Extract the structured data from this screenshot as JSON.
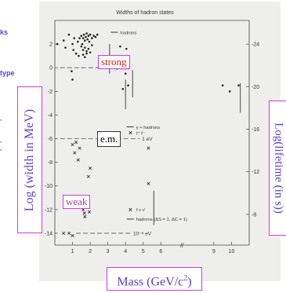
{
  "sidebar_fragments": [
    "ks",
    "type"
  ],
  "colors": {
    "label_border": "#d63ad8",
    "axis_label_text": "#5b3fd0",
    "strong_text": "#e81c1c"
  },
  "chart_data": {
    "type": "scatter",
    "title": "Widths of hadron states",
    "xlabel": "Mass (GeV/c",
    "xlabel_superscript": "2",
    "xlabel_close": ")",
    "ylabel_left": "Log (width in MeV)",
    "ylabel_right": "Log(lifetime (in s))",
    "xlim": [
      0,
      11
    ],
    "ylim": [
      -15,
      4
    ],
    "x_ticks": [
      1,
      2,
      3,
      4,
      5,
      6,
      9,
      10
    ],
    "y_ticks_left": [
      2,
      0,
      -2,
      -4,
      -6,
      -8,
      -10,
      -12,
      -14
    ],
    "y_ticks_right": [
      -24,
      -20,
      -16,
      -12,
      -8
    ],
    "regions": {
      "strong": "strong",
      "em": "e.m.",
      "weak": "weak"
    },
    "reference_lines": [
      {
        "label": "1 MeV",
        "y": 0
      },
      {
        "label": "1 eV",
        "y": -6
      },
      {
        "label": "10⁻⁸ eV",
        "y": -14
      }
    ],
    "legend": {
      "hadrons": "hadrons",
      "em1": "γ + hadrons",
      "em2": "ℓ⁺ ℓ⁻",
      "weak1": "ℓ ν ν̄",
      "weak2": "hadrons (ΔS = 1, ΔC = 1)"
    },
    "series": [
      {
        "x": [
          0.14,
          0.5,
          0.6,
          0.8,
          1.0,
          1.05,
          1.1,
          1.2,
          1.3,
          1.35,
          1.4,
          1.5,
          1.55,
          1.6,
          1.65,
          1.7,
          1.75,
          1.8,
          1.85,
          1.9,
          1.95,
          2.0,
          2.1,
          2.2,
          2.3,
          2.4,
          1.5,
          1.6,
          1.7,
          1.8,
          1.9,
          2.0,
          2.1,
          1.6,
          1.7,
          1.8,
          0.95,
          1.0,
          3.7,
          3.85,
          4.0,
          4.05,
          4.15,
          9.5,
          9.9,
          10.4
        ],
        "y": [
          2.0,
          2.3,
          1.7,
          2.8,
          2.0,
          1.5,
          2.5,
          1.2,
          2.2,
          1.0,
          2.5,
          2.7,
          2.0,
          2.5,
          2.8,
          2.3,
          2.6,
          2.9,
          2.4,
          2.7,
          2.2,
          2.8,
          2.5,
          2.7,
          2.6,
          2.8,
          1.8,
          1.5,
          1.7,
          1.4,
          1.6,
          1.3,
          1.9,
          1.1,
          0.9,
          1.2,
          -0.3,
          -1.0,
          1.8,
          -1.8,
          -0.5,
          1.6,
          -1.5,
          -1.5,
          -2.0,
          -1.5
        ]
      },
      {
        "x": [
          1.0,
          1.12,
          1.2,
          1.32,
          1.4,
          1.6,
          1.67,
          1.7,
          1.9,
          1.95,
          2.0,
          5.3,
          5.3,
          0.5,
          1.0,
          0.8
        ],
        "y": [
          -6.5,
          -7.2,
          -6.3,
          -7.8,
          -6.8,
          -12.0,
          -12.3,
          -12.6,
          -9.2,
          -12.2,
          -8.5,
          -6.8,
          -9.8,
          -14.0,
          -14.2,
          -14.0
        ]
      }
    ]
  }
}
